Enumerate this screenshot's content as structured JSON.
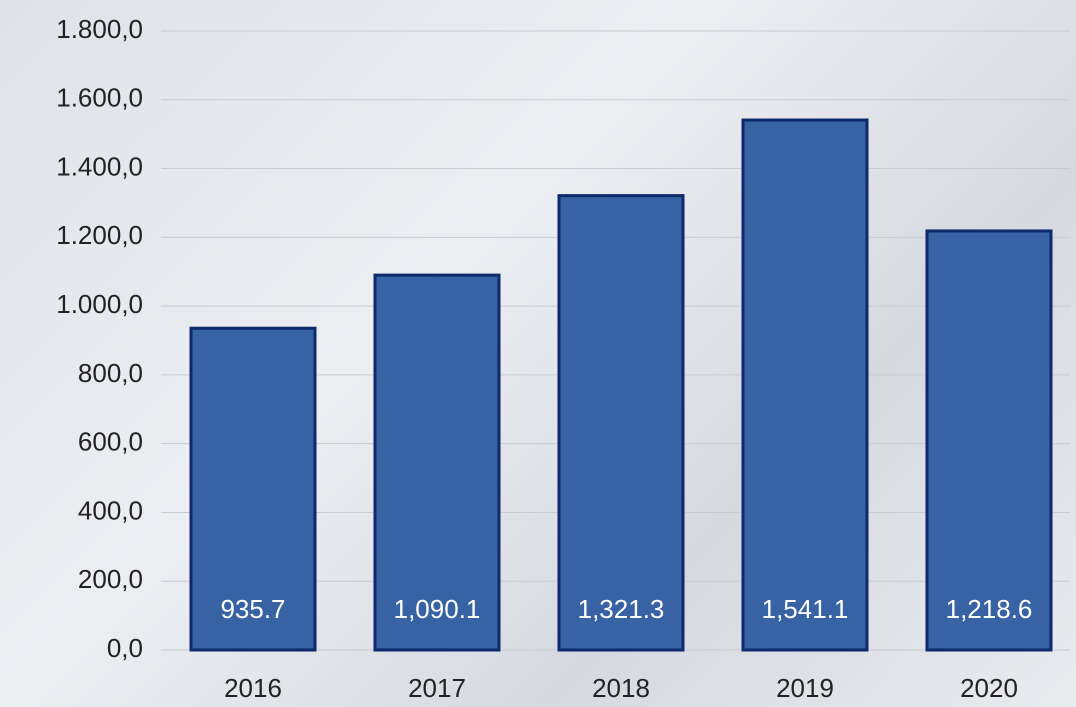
{
  "chart_data": {
    "type": "bar",
    "categories": [
      "2016",
      "2017",
      "2018",
      "2019",
      "2020"
    ],
    "values": [
      935.7,
      1090.1,
      1321.3,
      1541.1,
      1218.6
    ],
    "value_labels": [
      "935.7",
      "1,090.1",
      "1,321.3",
      "1,541.1",
      "1,218.6"
    ],
    "color": "#3762a3",
    "ylim": [
      0,
      1800
    ],
    "yticks": [
      {
        "value": 0,
        "label": "0,0"
      },
      {
        "value": 200,
        "label": "200,0"
      },
      {
        "value": 400,
        "label": "400,0"
      },
      {
        "value": 600,
        "label": "600,0"
      },
      {
        "value": 800,
        "label": "800,0"
      },
      {
        "value": 1000,
        "label": "1.000,0"
      },
      {
        "value": 1200,
        "label": "1.200,0"
      },
      {
        "value": 1400,
        "label": "1.400,0"
      },
      {
        "value": 1600,
        "label": "1.600,0"
      },
      {
        "value": 1800,
        "label": "1.800,0"
      }
    ],
    "grid": true
  }
}
